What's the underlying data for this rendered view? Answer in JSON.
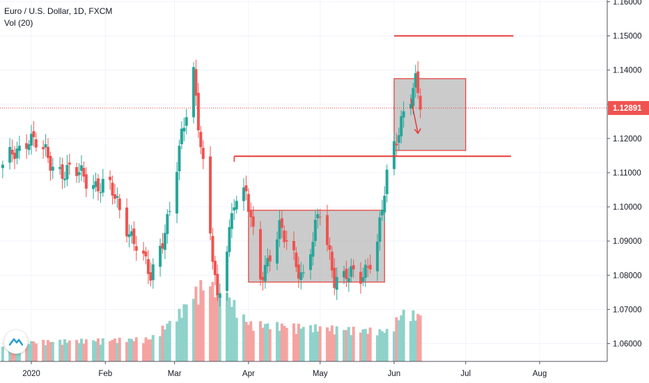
{
  "header": {
    "symbol_line": "Euro / U.S. Dollar, 1D, FXCM",
    "volume_label": "Vol (20)"
  },
  "colors": {
    "up": "#26a69a",
    "down": "#ef5350",
    "volume_up": "#8fd2ca",
    "volume_down": "#f5a3a1",
    "drawing": "#e53935",
    "box_fill": "#a9a9a9",
    "last_price_badge": "#ef5350"
  },
  "chart_data": {
    "type": "candlestick",
    "title": "Euro / U.S. Dollar, 1D, FXCM",
    "x_tick_labels": [
      "2020",
      "Feb",
      "Mar",
      "Apr",
      "May",
      "Jun",
      "Jul",
      "Aug"
    ],
    "y_tick_labels": [
      "1.06000",
      "1.07000",
      "1.08000",
      "1.09000",
      "1.10000",
      "1.11000",
      "1.12000",
      "1.13000",
      "1.14000",
      "1.15000",
      "1.16000"
    ],
    "y_range": [
      1.0548,
      1.1605
    ],
    "last_price": 1.12891,
    "last_price_label": "1.12891",
    "anchors": [
      {
        "date": "2019-12-20",
        "price": 1.111
      },
      {
        "date": "2019-12-31",
        "price": 1.121
      },
      {
        "date": "2020-01-10",
        "price": 1.112
      },
      {
        "date": "2020-01-22",
        "price": 1.109
      },
      {
        "date": "2020-02-03",
        "price": 1.105
      },
      {
        "date": "2020-02-12",
        "price": 1.092
      },
      {
        "date": "2020-02-20",
        "price": 1.079
      },
      {
        "date": "2020-02-28",
        "price": 1.099
      },
      {
        "date": "2020-03-09",
        "price": 1.14
      },
      {
        "date": "2020-03-13",
        "price": 1.112
      },
      {
        "date": "2020-03-19",
        "price": 1.071
      },
      {
        "date": "2020-03-26",
        "price": 1.103
      },
      {
        "date": "2020-03-31",
        "price": 1.103
      },
      {
        "date": "2020-04-06",
        "price": 1.08
      },
      {
        "date": "2020-04-14",
        "price": 1.093
      },
      {
        "date": "2020-04-24",
        "price": 1.08
      },
      {
        "date": "2020-05-01",
        "price": 1.098
      },
      {
        "date": "2020-05-07",
        "price": 1.08
      },
      {
        "date": "2020-05-18",
        "price": 1.079
      },
      {
        "date": "2020-05-25",
        "price": 1.09
      },
      {
        "date": "2020-05-29",
        "price": 1.108
      },
      {
        "date": "2020-06-05",
        "price": 1.129
      },
      {
        "date": "2020-06-10",
        "price": 1.136
      },
      {
        "date": "2020-06-12",
        "price": 1.1289
      }
    ],
    "vol_anchors": [
      {
        "date": "2019-12-20",
        "value": 0.25
      },
      {
        "date": "2020-02-20",
        "value": 0.3
      },
      {
        "date": "2020-03-02",
        "value": 0.6
      },
      {
        "date": "2020-03-12",
        "value": 1.0
      },
      {
        "date": "2020-03-20",
        "value": 1.0
      },
      {
        "date": "2020-04-01",
        "value": 0.5
      },
      {
        "date": "2020-05-29",
        "value": 0.4
      },
      {
        "date": "2020-06-05",
        "value": 0.65
      },
      {
        "date": "2020-06-12",
        "value": 0.6
      }
    ],
    "drawings": {
      "resistance_line": {
        "from": "2020-06-01",
        "to": "2020-07-21",
        "price": 1.15
      },
      "support_line": {
        "from": "2020-03-26",
        "to": "2020-07-20",
        "price": 1.1148
      },
      "range_box_lower": {
        "from": "2020-04-01",
        "to": "2020-05-28",
        "top": 1.099,
        "bottom": 1.078
      },
      "range_box_upper": {
        "from": "2020-06-01",
        "to": "2020-07-01",
        "top": 1.1375,
        "bottom": 1.1165
      },
      "arrow": {
        "from_date": "2020-06-08",
        "from_price": 1.1318,
        "to_date": "2020-06-11",
        "to_price": 1.1215
      }
    }
  }
}
